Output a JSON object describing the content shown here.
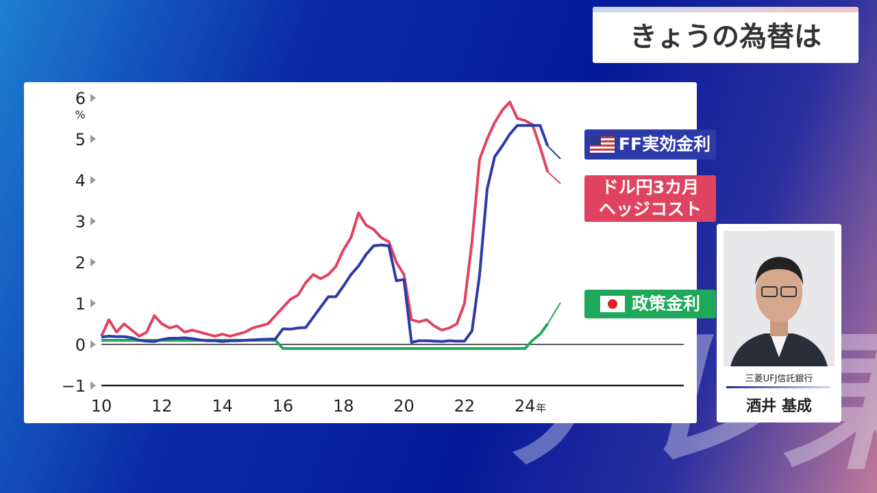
{
  "header": {
    "title": "きょうの為替は"
  },
  "guest": {
    "company": "三菱UFJ信託銀行",
    "name": "酒井 基成"
  },
  "watermark": "テレ東",
  "chart_data": {
    "type": "line",
    "x": [
      2010,
      2010.25,
      2010.5,
      2010.75,
      2011,
      2011.25,
      2011.5,
      2011.75,
      2012,
      2012.25,
      2012.5,
      2012.75,
      2013,
      2013.25,
      2013.5,
      2013.75,
      2014,
      2014.25,
      2014.5,
      2014.75,
      2015,
      2015.25,
      2015.5,
      2015.75,
      2016,
      2016.25,
      2016.5,
      2016.75,
      2017,
      2017.25,
      2017.5,
      2017.75,
      2018,
      2018.25,
      2018.5,
      2018.75,
      2019,
      2019.25,
      2019.5,
      2019.75,
      2020,
      2020.25,
      2020.5,
      2020.75,
      2021,
      2021.25,
      2021.5,
      2021.75,
      2022,
      2022.25,
      2022.5,
      2022.75,
      2023,
      2023.25,
      2023.5,
      2023.75,
      2024,
      2024.25,
      2024.5,
      2024.75
    ],
    "series": [
      {
        "name": "FF実効金利",
        "color": "#2b3aa8",
        "values": [
          0.18,
          0.2,
          0.19,
          0.19,
          0.16,
          0.1,
          0.08,
          0.07,
          0.12,
          0.15,
          0.15,
          0.16,
          0.14,
          0.11,
          0.09,
          0.09,
          0.07,
          0.09,
          0.09,
          0.1,
          0.11,
          0.12,
          0.13,
          0.13,
          0.38,
          0.37,
          0.4,
          0.41,
          0.66,
          0.91,
          1.16,
          1.16,
          1.42,
          1.7,
          1.91,
          2.19,
          2.4,
          2.42,
          2.4,
          1.55,
          1.58,
          0.05,
          0.09,
          0.09,
          0.08,
          0.07,
          0.09,
          0.08,
          0.08,
          0.33,
          1.68,
          3.78,
          4.57,
          4.83,
          5.12,
          5.33,
          5.33,
          5.33,
          5.33,
          4.83
        ]
      },
      {
        "name": "ドル円3カ月\nヘッジコスト",
        "color": "#e0435f",
        "values": [
          0.2,
          0.6,
          0.3,
          0.5,
          0.35,
          0.2,
          0.3,
          0.7,
          0.5,
          0.4,
          0.45,
          0.3,
          0.35,
          0.3,
          0.25,
          0.2,
          0.25,
          0.2,
          0.25,
          0.3,
          0.4,
          0.45,
          0.5,
          0.7,
          0.9,
          1.1,
          1.2,
          1.5,
          1.7,
          1.6,
          1.7,
          1.9,
          2.3,
          2.6,
          3.2,
          2.9,
          2.8,
          2.6,
          2.5,
          2.0,
          1.7,
          0.6,
          0.55,
          0.6,
          0.45,
          0.35,
          0.4,
          0.5,
          1.0,
          2.5,
          4.5,
          5.0,
          5.4,
          5.7,
          5.9,
          5.5,
          5.45,
          5.35,
          4.8,
          4.2
        ]
      },
      {
        "name": "政策金利",
        "color": "#1fa85a",
        "values": [
          0.1,
          0.1,
          0.1,
          0.1,
          0.1,
          0.1,
          0.1,
          0.1,
          0.1,
          0.1,
          0.1,
          0.1,
          0.1,
          0.1,
          0.1,
          0.1,
          0.1,
          0.1,
          0.1,
          0.1,
          0.1,
          0.1,
          0.1,
          0.1,
          -0.1,
          -0.1,
          -0.1,
          -0.1,
          -0.1,
          -0.1,
          -0.1,
          -0.1,
          -0.1,
          -0.1,
          -0.1,
          -0.1,
          -0.1,
          -0.1,
          -0.1,
          -0.1,
          -0.1,
          -0.1,
          -0.1,
          -0.1,
          -0.1,
          -0.1,
          -0.1,
          -0.1,
          -0.1,
          -0.1,
          -0.1,
          -0.1,
          -0.1,
          -0.1,
          -0.1,
          -0.1,
          -0.1,
          0.1,
          0.25,
          0.5
        ]
      }
    ],
    "xlim": [
      2010,
      2029.25
    ],
    "xticks": [
      {
        "value": 2010,
        "label": "10"
      },
      {
        "value": 2012,
        "label": "12"
      },
      {
        "value": 2014,
        "label": "14"
      },
      {
        "value": 2016,
        "label": "16"
      },
      {
        "value": 2018,
        "label": "18"
      },
      {
        "value": 2020,
        "label": "20"
      },
      {
        "value": 2022,
        "label": "22"
      },
      {
        "value": 2024,
        "label": "24"
      }
    ],
    "x_unit": "年",
    "ylim": [
      -1,
      6
    ],
    "yticks": [
      {
        "value": -1,
        "label": "−1"
      },
      0,
      1,
      2,
      3,
      4,
      5,
      6
    ],
    "y_unit": "%"
  }
}
